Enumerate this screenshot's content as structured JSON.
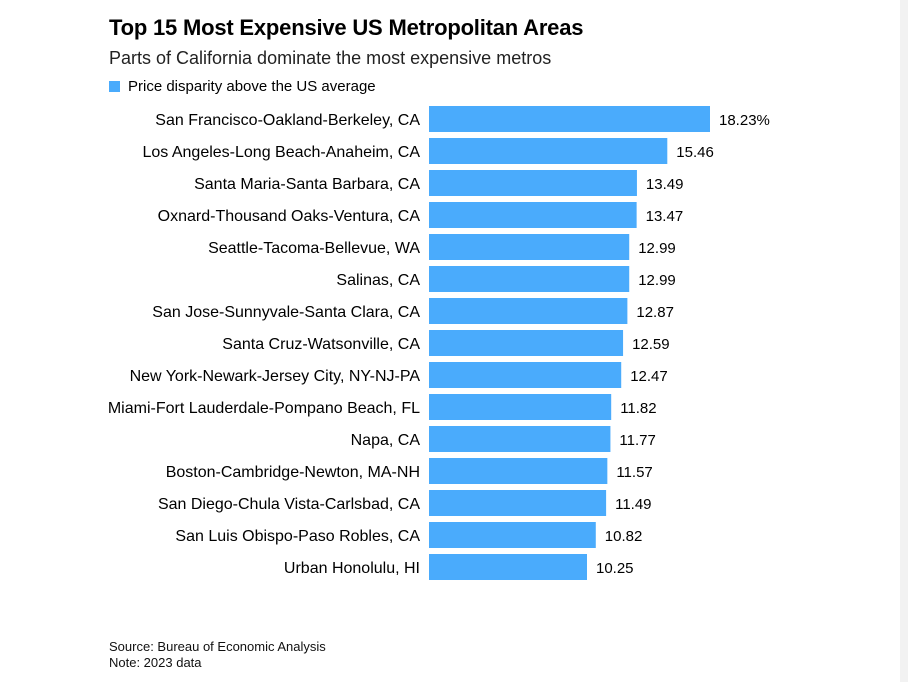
{
  "header": {
    "title": "Top 15 Most Expensive US Metropolitan Areas",
    "subtitle": "Parts of California dominate the most expensive metros"
  },
  "legend": {
    "label": "Price disparity above the US average",
    "color": "#4aabfc"
  },
  "footer": {
    "source": "Source: Bureau of Economic Analysis",
    "note": "Note: 2023 data"
  },
  "chart_data": {
    "type": "bar",
    "orientation": "horizontal",
    "categories": [
      "San Francisco-Oakland-Berkeley, CA",
      "Los Angeles-Long Beach-Anaheim, CA",
      "Santa Maria-Santa Barbara, CA",
      "Oxnard-Thousand Oaks-Ventura, CA",
      "Seattle-Tacoma-Bellevue, WA",
      "Salinas, CA",
      "San Jose-Sunnyvale-Santa Clara, CA",
      "Santa Cruz-Watsonville, CA",
      "New York-Newark-Jersey City, NY-NJ-PA",
      "Miami-Fort Lauderdale-Pompano Beach, FL",
      "Napa, CA",
      "Boston-Cambridge-Newton, MA-NH",
      "San Diego-Chula Vista-Carlsbad, CA",
      "San Luis Obispo-Paso Robles, CA",
      "Urban Honolulu, HI"
    ],
    "values": [
      18.23,
      15.46,
      13.49,
      13.47,
      12.99,
      12.99,
      12.87,
      12.59,
      12.47,
      11.82,
      11.77,
      11.57,
      11.49,
      10.82,
      10.25
    ],
    "value_labels": [
      "18.23%",
      "15.46",
      "13.49",
      "13.47",
      "12.99",
      "12.99",
      "12.87",
      "12.59",
      "12.47",
      "11.82",
      "11.77",
      "11.57",
      "11.49",
      "10.82",
      "10.25"
    ],
    "series_name": "Price disparity above the US average",
    "xlim": [
      0,
      18.23
    ],
    "grid": false,
    "legend_position": "top-left",
    "bar_color": "#4aabfc"
  }
}
